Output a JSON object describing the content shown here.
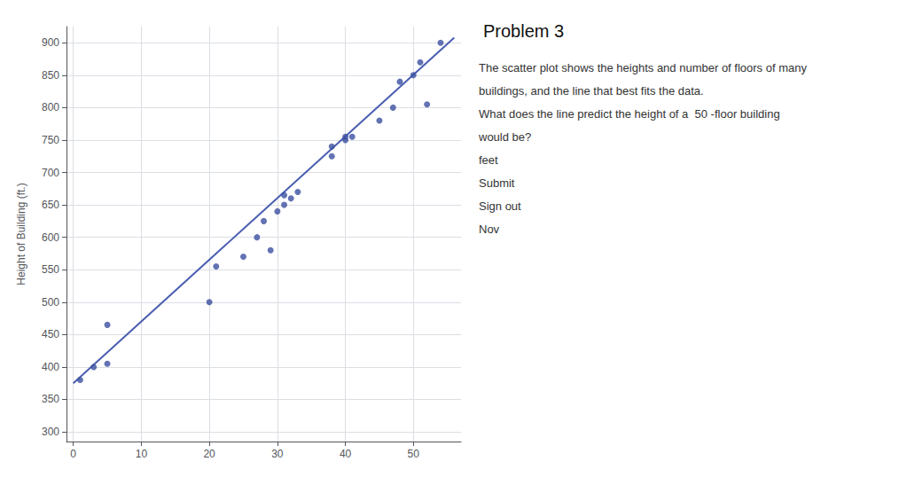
{
  "chart_data": {
    "type": "scatter",
    "title": "Problem 3",
    "ylabel": "Height of Building (ft.)",
    "series": [
      {
        "type": "scatter",
        "color": "#3b4fa0",
        "x": [
          1,
          3,
          5,
          5,
          20,
          21,
          25,
          27,
          28,
          29,
          30,
          31,
          31,
          32,
          33,
          38,
          38,
          40,
          40,
          41,
          45,
          47,
          48,
          50,
          51,
          52,
          54
        ],
        "values": [
          380,
          400,
          405,
          465,
          500,
          555,
          570,
          600,
          625,
          580,
          640,
          650,
          665,
          660,
          670,
          725,
          740,
          750,
          755,
          755,
          780,
          800,
          840,
          850,
          870,
          805,
          900
        ]
      },
      {
        "type": "line",
        "color": "#4a5db0",
        "x": [
          0,
          56
        ],
        "values": [
          375,
          908
        ]
      }
    ],
    "xlim": [
      -1,
      57
    ],
    "ylim": [
      285,
      925
    ],
    "xticks": [
      0,
      10,
      20,
      30,
      40,
      50
    ],
    "yticks": [
      300,
      350,
      400,
      450,
      500,
      550,
      600,
      650,
      700,
      750,
      800,
      850,
      900
    ],
    "grid": true,
    "annotations": [
      "The scatter plot shows the heights and number of floors of many",
      "buildings, and the line that best fits the data.",
      "What does the line predict the height of a  50 -floor building",
      "would be?",
      "feet",
      "Submit",
      "Sign out",
      "Nov"
    ]
  }
}
